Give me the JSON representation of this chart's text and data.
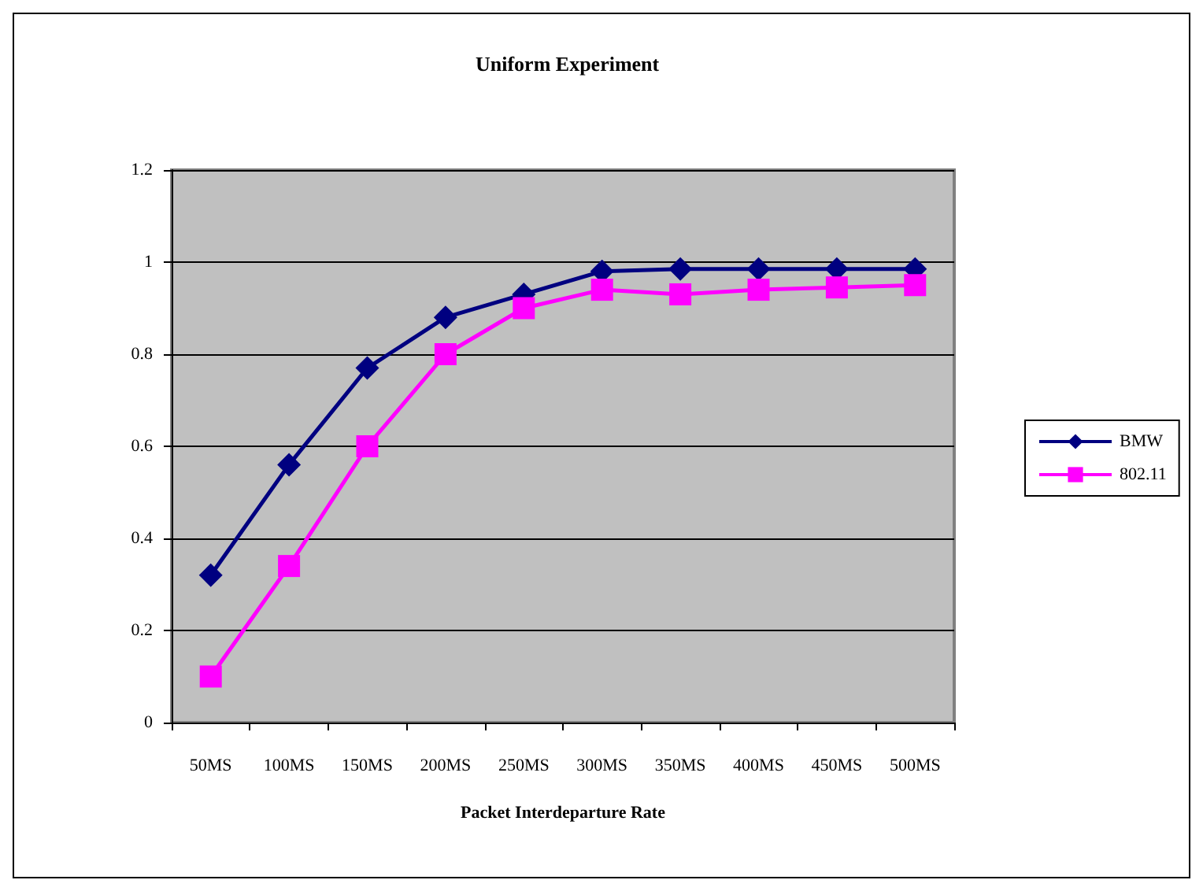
{
  "chart_data": {
    "type": "line",
    "title": "Uniform Experiment",
    "xlabel": "Packet Interdeparture Rate",
    "categories": [
      "50MS",
      "100MS",
      "150MS",
      "200MS",
      "250MS",
      "300MS",
      "350MS",
      "400MS",
      "450MS",
      "500MS"
    ],
    "series": [
      {
        "name": "BMW",
        "color": "#000080",
        "marker": "diamond",
        "values": [
          0.32,
          0.56,
          0.77,
          0.88,
          0.93,
          0.98,
          0.985,
          0.985,
          0.985,
          0.985
        ]
      },
      {
        "name": "802.11",
        "color": "#ff00ff",
        "marker": "square",
        "values": [
          0.1,
          0.34,
          0.6,
          0.8,
          0.9,
          0.94,
          0.93,
          0.94,
          0.945,
          0.95
        ]
      }
    ],
    "ylim": [
      0,
      1.2
    ],
    "yticks": [
      0,
      0.2,
      0.4,
      0.6,
      0.8,
      1,
      1.2
    ],
    "grid": "y",
    "legend": "right",
    "line_style": "solid"
  }
}
